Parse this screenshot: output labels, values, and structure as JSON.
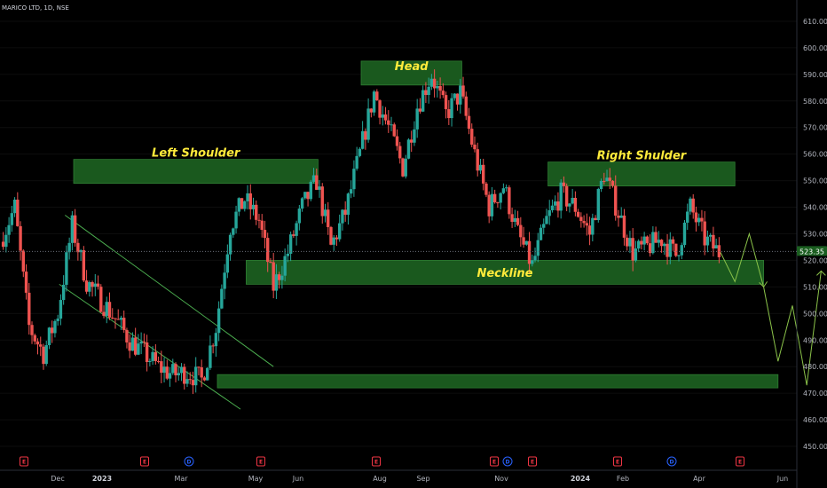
{
  "symbol_title": "MARICO LTD, 1D, NSE",
  "current_price": "523.35",
  "colors": {
    "up": "#26a69a",
    "down": "#ef5350",
    "zone_fill": "#1b5e20",
    "zone_stroke": "#2e7d32",
    "channel": "#4caf50",
    "projection": "#8bc34a",
    "annotation": "#ffeb3b",
    "price_tag": "#1b5e20"
  },
  "annotations": {
    "head": "Head",
    "left_shoulder": "Left Shoulder",
    "right_shoulder": "Right Shulder",
    "neckline": "Neckline"
  },
  "chart_data": {
    "type": "candlestick",
    "title": "MARICO LTD, 1D, NSE",
    "y_axis": {
      "ticks": [
        610,
        600,
        590,
        580,
        570,
        560,
        550,
        540,
        530,
        520,
        510,
        500,
        490,
        480,
        470,
        460,
        450
      ],
      "range": [
        447,
        616
      ]
    },
    "x_axis": {
      "ticks": [
        {
          "label": "Dec",
          "bold": false
        },
        {
          "label": "2023",
          "bold": true
        },
        {
          "label": "Mar",
          "bold": false
        },
        {
          "label": "May",
          "bold": false
        },
        {
          "label": "Jun",
          "bold": false
        },
        {
          "label": "Aug",
          "bold": false
        },
        {
          "label": "Sep",
          "bold": false
        },
        {
          "label": "Nov",
          "bold": false
        },
        {
          "label": "2024",
          "bold": true
        },
        {
          "label": "Feb",
          "bold": false
        },
        {
          "label": "Apr",
          "bold": false
        },
        {
          "label": "Jun",
          "bold": false
        }
      ]
    },
    "price_path": [
      [
        0,
        527
      ],
      [
        1,
        540
      ],
      [
        2,
        495
      ],
      [
        3,
        485
      ],
      [
        4,
        500
      ],
      [
        5,
        533
      ],
      [
        6,
        512
      ],
      [
        7,
        505
      ],
      [
        8,
        498
      ],
      [
        9,
        490
      ],
      [
        10,
        485
      ],
      [
        11,
        480
      ],
      [
        12,
        477
      ],
      [
        13,
        478
      ],
      [
        14,
        475
      ],
      [
        15,
        495
      ],
      [
        16,
        533
      ],
      [
        17,
        543
      ],
      [
        18,
        535
      ],
      [
        19,
        510
      ],
      [
        20,
        523
      ],
      [
        21,
        540
      ],
      [
        22,
        550
      ],
      [
        23,
        525
      ],
      [
        24,
        538
      ],
      [
        25,
        560
      ],
      [
        26,
        583
      ],
      [
        27,
        570
      ],
      [
        28,
        555
      ],
      [
        29,
        578
      ],
      [
        30,
        590
      ],
      [
        31,
        575
      ],
      [
        32,
        583
      ],
      [
        33,
        560
      ],
      [
        34,
        540
      ],
      [
        35,
        548
      ],
      [
        36,
        530
      ],
      [
        37,
        518
      ],
      [
        38,
        535
      ],
      [
        39,
        545
      ],
      [
        40,
        540
      ],
      [
        41,
        530
      ],
      [
        42,
        553
      ],
      [
        43,
        538
      ],
      [
        44,
        523
      ],
      [
        45,
        525
      ],
      [
        46,
        528
      ],
      [
        47,
        522
      ],
      [
        48,
        540
      ],
      [
        49,
        528
      ],
      [
        50,
        523
      ]
    ],
    "projection_path": [
      [
        50,
        523
      ],
      [
        51,
        512
      ],
      [
        52,
        530
      ],
      [
        53,
        510
      ],
      [
        54,
        482
      ],
      [
        55,
        503
      ],
      [
        56,
        473
      ],
      [
        57,
        516
      ]
    ],
    "zones": [
      {
        "label": "Head",
        "from": 25,
        "to": 32,
        "low": 586,
        "high": 595
      },
      {
        "label": "Left Shoulder",
        "from": 5,
        "to": 22,
        "low": 549,
        "high": 558
      },
      {
        "label": "Right Shulder",
        "from": 38,
        "to": 51,
        "low": 548,
        "high": 557
      },
      {
        "label": "Neckline",
        "from": 17,
        "to": 53,
        "low": 511,
        "high": 520
      },
      {
        "label": "",
        "from": 15,
        "to": 54,
        "low": 472,
        "high": 477
      }
    ],
    "current_price": 523.35,
    "events": [
      "E",
      "E",
      "D",
      "E",
      "E",
      "E",
      "D",
      "E",
      "E",
      "D",
      "E"
    ]
  }
}
